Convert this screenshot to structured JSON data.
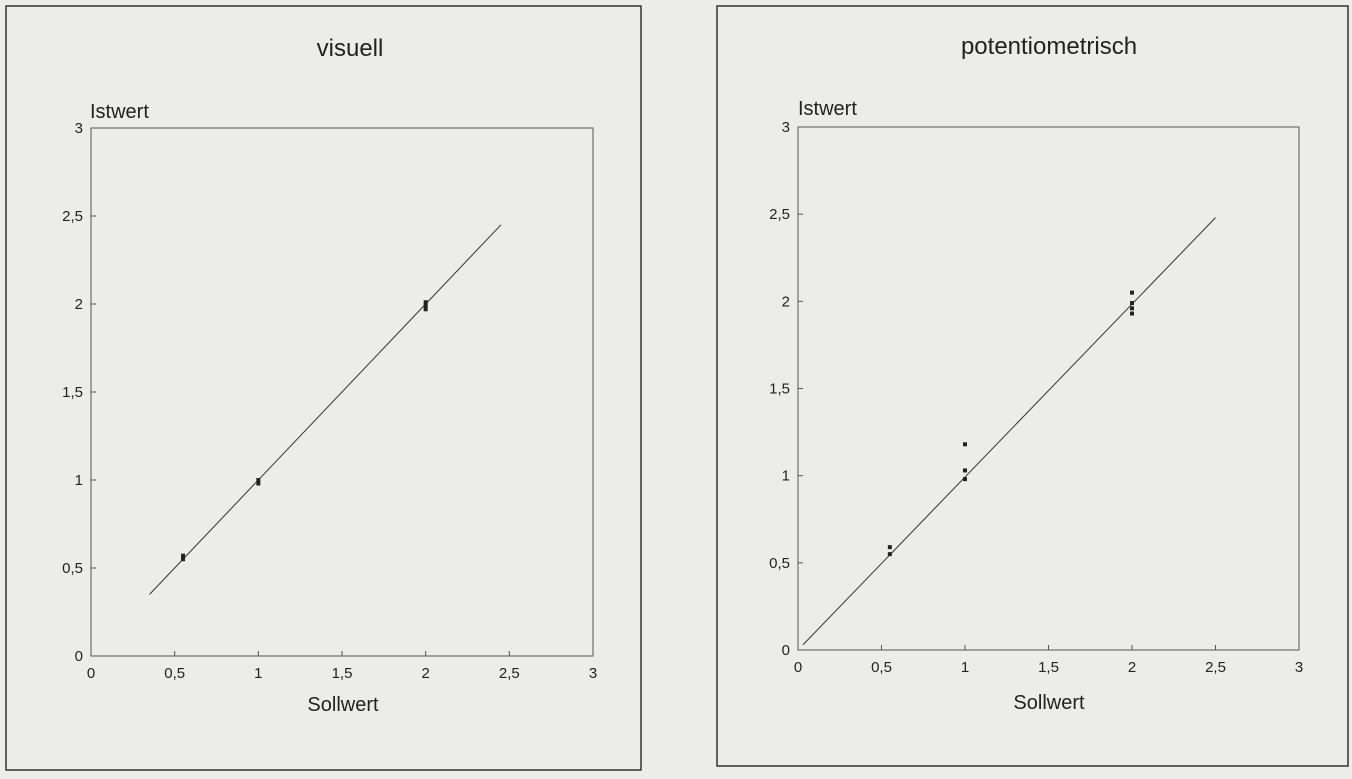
{
  "chart_data": [
    {
      "type": "scatter",
      "title": "visuell",
      "xlabel": "Sollwert",
      "ylabel": "Istwert",
      "xlim": [
        0,
        3
      ],
      "ylim": [
        0,
        3
      ],
      "xticks": [
        "0",
        "0,5",
        "1",
        "1,5",
        "2",
        "2,5",
        "3"
      ],
      "yticks": [
        "0",
        "0,5",
        "1",
        "1,5",
        "2",
        "2,5",
        "3"
      ],
      "points": [
        {
          "x": 0.55,
          "y": 0.55
        },
        {
          "x": 0.55,
          "y": 0.57
        },
        {
          "x": 1.0,
          "y": 0.98
        },
        {
          "x": 1.0,
          "y": 1.0
        },
        {
          "x": 2.0,
          "y": 1.97
        },
        {
          "x": 2.0,
          "y": 1.99
        },
        {
          "x": 2.0,
          "y": 2.01
        }
      ],
      "line": {
        "style": "solid",
        "x1": 0.35,
        "y1": 0.35,
        "x2": 2.45,
        "y2": 2.45
      },
      "grid": false
    },
    {
      "type": "scatter",
      "title": "potentiometrisch",
      "xlabel": "Sollwert",
      "ylabel": "Istwert",
      "xlim": [
        0,
        3
      ],
      "ylim": [
        0,
        3
      ],
      "xticks": [
        "0",
        "0,5",
        "1",
        "1,5",
        "2",
        "2,5",
        "3"
      ],
      "yticks": [
        "0",
        "0,5",
        "1",
        "1,5",
        "2",
        "2,5",
        "3"
      ],
      "points": [
        {
          "x": 0.55,
          "y": 0.55
        },
        {
          "x": 0.55,
          "y": 0.59
        },
        {
          "x": 1.0,
          "y": 0.98
        },
        {
          "x": 1.0,
          "y": 1.03
        },
        {
          "x": 1.0,
          "y": 1.18
        },
        {
          "x": 2.0,
          "y": 1.93
        },
        {
          "x": 2.0,
          "y": 1.96
        },
        {
          "x": 2.0,
          "y": 1.99
        },
        {
          "x": 2.0,
          "y": 2.05
        }
      ],
      "line": {
        "style": "solid",
        "x1": 0.03,
        "y1": 0.03,
        "x2": 2.5,
        "y2": 2.48
      },
      "grid": false
    }
  ]
}
